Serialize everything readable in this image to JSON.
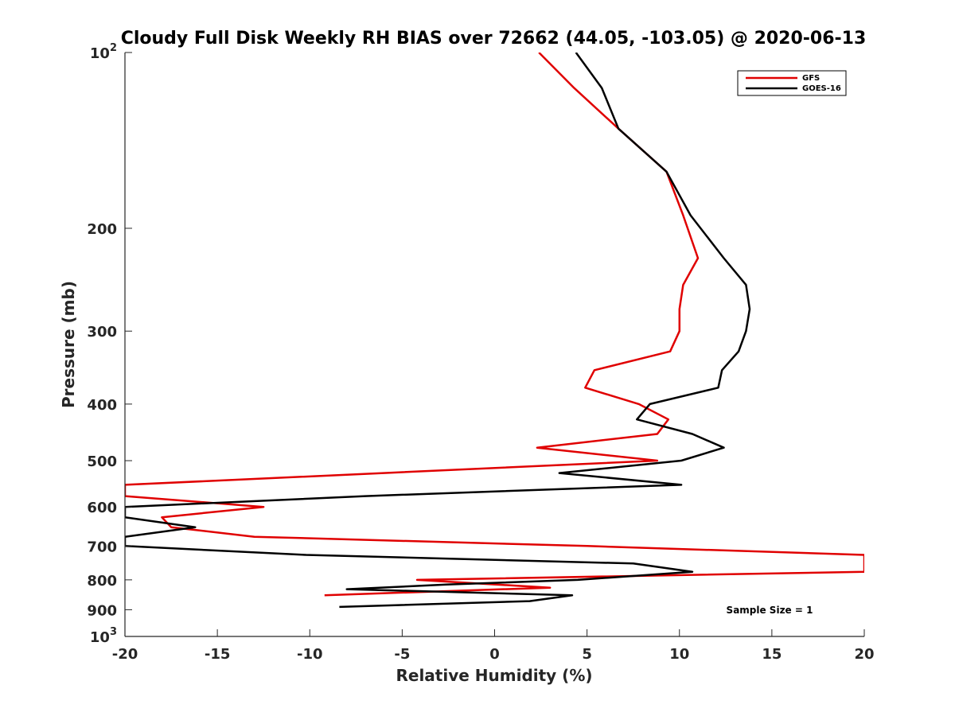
{
  "chart_data": {
    "type": "line",
    "title": "Cloudy Full Disk Weekly RH BIAS over 72662 (44.05, -103.05) @ 2020-06-13",
    "xlabel": "Relative Humidity (%)",
    "ylabel": "Pressure (mb)",
    "xlim": [
      -20,
      20
    ],
    "ylim": [
      100,
      1000
    ],
    "y_scale": "log",
    "y_reversed": true,
    "grid": false,
    "legend_position": "top-right",
    "x_ticks": [
      "-20",
      "-15",
      "-10",
      "-5",
      "0",
      "5",
      "10",
      "15",
      "20"
    ],
    "y_ticks": [
      {
        "value": 100,
        "base": "10",
        "exp": "2"
      },
      {
        "value": 200,
        "label": "200"
      },
      {
        "value": 300,
        "label": "300"
      },
      {
        "value": 400,
        "label": "400"
      },
      {
        "value": 500,
        "label": "500"
      },
      {
        "value": 600,
        "label": "600"
      },
      {
        "value": 700,
        "label": "700"
      },
      {
        "value": 800,
        "label": "800"
      },
      {
        "value": 900,
        "label": "900"
      },
      {
        "value": 1000,
        "base": "10",
        "exp": "3"
      }
    ],
    "annotation": "Sample Size = 1",
    "series": [
      {
        "name": "GFS",
        "color": "#e00000",
        "points": [
          {
            "x": 2.4,
            "p": 100
          },
          {
            "x": 4.3,
            "p": 115
          },
          {
            "x": 6.7,
            "p": 135
          },
          {
            "x": 9.3,
            "p": 160
          },
          {
            "x": 10.2,
            "p": 190
          },
          {
            "x": 11.0,
            "p": 225
          },
          {
            "x": 10.2,
            "p": 250
          },
          {
            "x": 10.0,
            "p": 275
          },
          {
            "x": 10.0,
            "p": 300
          },
          {
            "x": 9.5,
            "p": 325
          },
          {
            "x": 5.4,
            "p": 350
          },
          {
            "x": 4.9,
            "p": 375
          },
          {
            "x": 7.8,
            "p": 400
          },
          {
            "x": 9.4,
            "p": 425
          },
          {
            "x": 8.8,
            "p": 450
          },
          {
            "x": 2.3,
            "p": 475
          },
          {
            "x": 8.8,
            "p": 500
          },
          {
            "x": -6.0,
            "p": 525
          },
          {
            "x": -20.0,
            "p": 550
          },
          {
            "x": -20.0,
            "p": 575
          },
          {
            "x": -12.5,
            "p": 600
          },
          {
            "x": -18.0,
            "p": 625
          },
          {
            "x": -17.5,
            "p": 650
          },
          {
            "x": -13.0,
            "p": 675
          },
          {
            "x": 5.0,
            "p": 700
          },
          {
            "x": 20.0,
            "p": 725
          },
          {
            "x": 20.0,
            "p": 775
          },
          {
            "x": -4.2,
            "p": 800
          },
          {
            "x": 3.0,
            "p": 825
          },
          {
            "x": -9.2,
            "p": 850
          }
        ]
      },
      {
        "name": "GOES-16",
        "color": "#000000",
        "points": [
          {
            "x": 4.4,
            "p": 100
          },
          {
            "x": 5.8,
            "p": 115
          },
          {
            "x": 6.7,
            "p": 135
          },
          {
            "x": 9.3,
            "p": 160
          },
          {
            "x": 10.6,
            "p": 190
          },
          {
            "x": 12.4,
            "p": 225
          },
          {
            "x": 13.6,
            "p": 250
          },
          {
            "x": 13.8,
            "p": 275
          },
          {
            "x": 13.6,
            "p": 300
          },
          {
            "x": 13.2,
            "p": 325
          },
          {
            "x": 12.3,
            "p": 350
          },
          {
            "x": 12.1,
            "p": 375
          },
          {
            "x": 8.4,
            "p": 400
          },
          {
            "x": 7.7,
            "p": 425
          },
          {
            "x": 10.7,
            "p": 450
          },
          {
            "x": 12.4,
            "p": 475
          },
          {
            "x": 10.1,
            "p": 500
          },
          {
            "x": 3.5,
            "p": 525
          },
          {
            "x": 10.1,
            "p": 550
          },
          {
            "x": -7.0,
            "p": 575
          },
          {
            "x": -20.0,
            "p": 600
          },
          {
            "x": -20.0,
            "p": 625
          },
          {
            "x": -16.2,
            "p": 650
          },
          {
            "x": -20.0,
            "p": 675
          },
          {
            "x": -20.0,
            "p": 700
          },
          {
            "x": -10.2,
            "p": 725
          },
          {
            "x": 7.5,
            "p": 750
          },
          {
            "x": 10.7,
            "p": 775
          },
          {
            "x": 4.5,
            "p": 800
          },
          {
            "x": -2.6,
            "p": 815
          },
          {
            "x": -8.0,
            "p": 830
          },
          {
            "x": 4.2,
            "p": 850
          },
          {
            "x": 1.9,
            "p": 870
          },
          {
            "x": -8.4,
            "p": 890
          }
        ]
      }
    ]
  }
}
